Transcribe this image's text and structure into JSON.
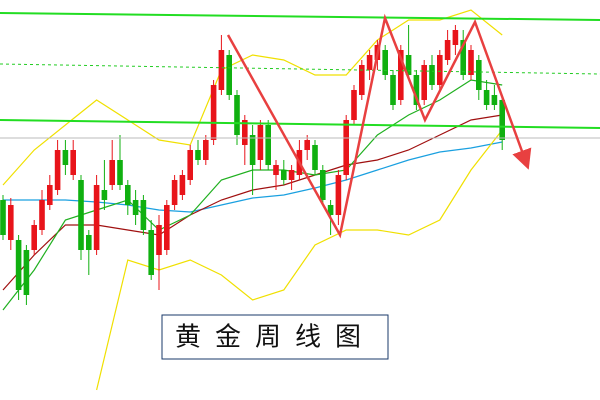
{
  "chart_data": {
    "type": "candlestick",
    "title": "黄金周线图",
    "up_color": "#e8141a",
    "down_color": "#10b010",
    "ylim": [
      0,
      400
    ],
    "open": [
      200,
      160,
      160,
      150,
      150,
      170,
      195,
      210,
      250,
      225,
      220,
      165,
      150,
      210,
      215,
      240,
      215,
      200,
      200,
      170,
      145,
      150,
      195,
      205,
      220,
      250,
      240,
      260,
      310,
      345,
      305,
      255,
      265,
      240,
      275,
      225,
      230,
      220,
      225,
      250,
      255,
      230,
      195,
      185,
      225,
      280,
      305,
      330,
      340,
      350,
      325,
      300,
      345,
      325,
      300,
      335,
      315,
      340,
      355,
      360,
      325,
      340,
      310,
      305,
      300
    ],
    "high": [
      205,
      202,
      165,
      155,
      180,
      210,
      225,
      260,
      260,
      260,
      225,
      170,
      225,
      240,
      260,
      265,
      220,
      210,
      205,
      180,
      185,
      200,
      225,
      230,
      255,
      260,
      265,
      320,
      365,
      350,
      310,
      285,
      275,
      280,
      280,
      240,
      240,
      235,
      260,
      265,
      260,
      235,
      200,
      230,
      285,
      315,
      340,
      350,
      360,
      355,
      330,
      355,
      375,
      330,
      340,
      345,
      350,
      370,
      375,
      370,
      355,
      345,
      320,
      315,
      305
    ],
    "low": [
      160,
      150,
      100,
      95,
      145,
      165,
      190,
      205,
      225,
      220,
      140,
      125,
      145,
      190,
      210,
      210,
      185,
      175,
      165,
      120,
      110,
      145,
      190,
      200,
      215,
      235,
      235,
      255,
      305,
      300,
      255,
      235,
      205,
      230,
      230,
      210,
      215,
      210,
      220,
      240,
      225,
      195,
      165,
      175,
      220,
      275,
      300,
      320,
      330,
      320,
      290,
      295,
      320,
      290,
      295,
      310,
      310,
      335,
      345,
      320,
      320,
      300,
      290,
      290,
      250
    ],
    "close": [
      165,
      195,
      110,
      105,
      175,
      200,
      215,
      250,
      235,
      250,
      150,
      150,
      215,
      200,
      240,
      215,
      195,
      185,
      170,
      125,
      175,
      195,
      220,
      225,
      250,
      240,
      260,
      315,
      350,
      305,
      265,
      280,
      235,
      275,
      235,
      235,
      220,
      230,
      250,
      260,
      230,
      200,
      185,
      225,
      280,
      310,
      335,
      345,
      355,
      325,
      295,
      350,
      325,
      295,
      335,
      315,
      345,
      360,
      370,
      325,
      350,
      310,
      295,
      295,
      260
    ],
    "lines": [
      {
        "color": "#1aa0e0",
        "x": [
          0,
          4,
          8,
          12,
          16,
          20,
          24,
          28,
          32,
          36,
          40,
          44,
          48,
          52,
          56,
          60,
          64
        ],
        "values": [
          200,
          200,
          200,
          198,
          195,
          190,
          188,
          195,
          202,
          205,
          212,
          220,
          230,
          240,
          248,
          252,
          258
        ]
      },
      {
        "color": "#a01010",
        "x": [
          0,
          4,
          8,
          12,
          16,
          20,
          24,
          28,
          32,
          36,
          40,
          44,
          48,
          52,
          56,
          60,
          64
        ],
        "values": [
          110,
          145,
          175,
          175,
          170,
          165,
          185,
          200,
          210,
          215,
          225,
          235,
          240,
          250,
          265,
          280,
          285
        ]
      },
      {
        "color": "#20b020",
        "x": [
          0,
          4,
          8,
          12,
          16,
          20,
          24,
          28,
          32,
          36,
          40,
          44,
          48,
          52,
          56,
          60,
          64
        ],
        "values": [
          90,
          130,
          180,
          190,
          200,
          170,
          185,
          220,
          230,
          230,
          225,
          230,
          265,
          285,
          300,
          320,
          315
        ]
      },
      {
        "color": "#f0e000",
        "x": [
          0,
          4,
          8,
          12,
          16,
          20,
          24,
          28,
          32,
          36,
          40,
          44,
          48,
          52,
          56,
          60,
          64
        ],
        "values": [
          215,
          250,
          275,
          300,
          280,
          260,
          255,
          330,
          345,
          340,
          325,
          325,
          360,
          380,
          380,
          390,
          365
        ]
      },
      {
        "color": "#f0e000",
        "x": [
          0,
          4,
          8,
          12,
          16,
          20,
          24,
          28,
          32,
          36,
          40,
          44,
          48,
          52,
          56,
          60,
          64
        ],
        "values": [
          null,
          null,
          null,
          10,
          140,
          130,
          140,
          125,
          100,
          110,
          155,
          170,
          170,
          165,
          180,
          230,
          270
        ]
      }
    ]
  }
}
